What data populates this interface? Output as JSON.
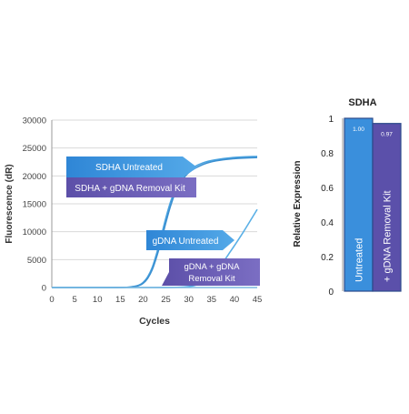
{
  "chart_data": [
    {
      "type": "line",
      "title": "",
      "xlabel": "Cycles",
      "ylabel": "Fluorescence (dR)",
      "xlim": [
        0,
        45
      ],
      "ylim": [
        0,
        30000
      ],
      "xticks": [
        0,
        5,
        10,
        15,
        20,
        25,
        30,
        35,
        40,
        45
      ],
      "yticks": [
        0,
        5000,
        10000,
        15000,
        20000,
        25000,
        30000
      ],
      "grid": "horizontal",
      "series": [
        {
          "name": "SDHA Untreated",
          "color": "#4aa3e0",
          "x": [
            0,
            10,
            15,
            17,
            19,
            20,
            21,
            22,
            23,
            24,
            25,
            26,
            27,
            28,
            30,
            33,
            36,
            40,
            45
          ],
          "y": [
            0,
            0,
            20,
            80,
            400,
            900,
            1900,
            3600,
            6200,
            9300,
            12500,
            15300,
            17500,
            19100,
            21000,
            22300,
            22900,
            23300,
            23500
          ]
        },
        {
          "name": "SDHA + gDNA Removal Kit",
          "color": "#3b8fd0",
          "x": [
            0,
            10,
            15,
            17,
            19,
            20,
            21,
            22,
            23,
            24,
            25,
            26,
            27,
            28,
            30,
            33,
            36,
            40,
            45
          ],
          "y": [
            0,
            0,
            15,
            60,
            330,
            760,
            1650,
            3200,
            5600,
            8500,
            11700,
            14600,
            16900,
            18600,
            20600,
            22000,
            22700,
            23100,
            23300
          ]
        },
        {
          "name": "gDNA Untreated",
          "color": "#5bb0e6",
          "x": [
            0,
            20,
            25,
            28,
            30,
            31,
            32,
            33,
            34,
            35,
            36,
            37,
            38,
            39,
            40,
            42,
            45
          ],
          "y": [
            0,
            0,
            10,
            60,
            180,
            320,
            560,
            920,
            1450,
            2150,
            3000,
            4000,
            5100,
            6300,
            7500,
            10000,
            14000
          ]
        },
        {
          "name": "gDNA + gDNA Removal Kit",
          "color": "#7ab8e0",
          "x": [
            0,
            10,
            20,
            30,
            40,
            45
          ],
          "y": [
            0,
            0,
            0,
            0,
            0,
            0
          ]
        }
      ],
      "annotations": [
        {
          "text": "SDHA Untreated",
          "color": "#4aa3e0"
        },
        {
          "text": "SDHA + gDNA Removal Kit",
          "color": "#5a4ea6"
        },
        {
          "text": "gDNA Untreated",
          "color": "#4aa3e0"
        },
        {
          "text": "gDNA + gDNA Removal Kit",
          "color": "#5a4ea6"
        }
      ]
    },
    {
      "type": "bar",
      "title": "SDHA",
      "xlabel": "",
      "ylabel": "Relative Expression",
      "ylim": [
        0,
        1
      ],
      "yticks": [
        0,
        0.2,
        0.4,
        0.6,
        0.8,
        1
      ],
      "categories": [
        "Untreated",
        "+ gDNA Removal Kit"
      ],
      "values": [
        1.0,
        0.97
      ],
      "value_labels": [
        "1.00",
        "0.97"
      ],
      "colors": [
        "#3a8fdc",
        "#5b50aa"
      ]
    }
  ]
}
